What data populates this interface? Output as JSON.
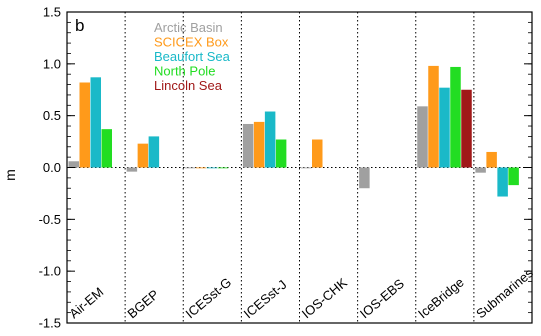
{
  "chart_data": {
    "type": "bar",
    "panel_label": "b",
    "ylabel": "m",
    "ylim": [
      -1.5,
      1.5
    ],
    "yticks": [
      -1.5,
      -1.0,
      -0.5,
      0.0,
      0.5,
      1.0,
      1.5
    ],
    "ytick_labels": [
      "-1.5",
      "-1.0",
      "-0.5",
      "0.0",
      "0.5",
      "1.0",
      "1.5"
    ],
    "categories": [
      "Air-EM",
      "BGEP",
      "ICESst-G",
      "ICESst-J",
      "IOS-CHK",
      "IOS-EBS",
      "IceBridge",
      "Submarines"
    ],
    "series": [
      {
        "name": "Arctic Basin",
        "color": "#a0a0a0",
        "values": [
          0.06,
          -0.04,
          0.0,
          0.42,
          0.0,
          -0.2,
          0.59,
          -0.05
        ]
      },
      {
        "name": "SCICEX Box",
        "color": "#ff9a1a",
        "values": [
          0.82,
          0.23,
          0.0,
          0.44,
          0.27,
          null,
          0.98,
          0.15
        ]
      },
      {
        "name": "Beaufort Sea",
        "color": "#1ab9c8",
        "values": [
          0.87,
          0.3,
          0.0,
          0.54,
          null,
          null,
          0.77,
          -0.28
        ]
      },
      {
        "name": "North Pole",
        "color": "#22dd22",
        "values": [
          0.37,
          null,
          0.0,
          0.27,
          null,
          null,
          0.97,
          -0.17
        ]
      },
      {
        "name": "Lincoln Sea",
        "color": "#a01818",
        "values": [
          null,
          null,
          null,
          null,
          null,
          null,
          0.75,
          null
        ]
      }
    ],
    "grid": "vertical dotted separators between categories; dotted zero line",
    "legend_placement": "top-left inside plot"
  }
}
